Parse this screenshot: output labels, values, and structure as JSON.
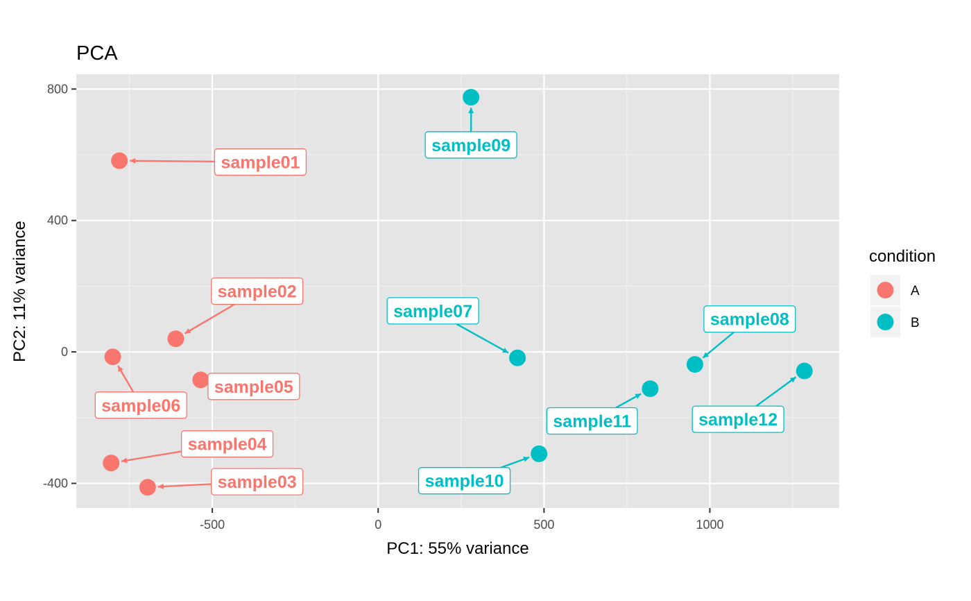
{
  "chart_data": {
    "type": "scatter",
    "title": "PCA",
    "xlabel": "PC1: 55% variance",
    "ylabel": "PC2: 11% variance",
    "xlim": [
      -910,
      1390
    ],
    "ylim": [
      -475,
      845
    ],
    "x_ticks": [
      -500,
      0,
      500,
      1000
    ],
    "y_ticks": [
      -400,
      0,
      400,
      800
    ],
    "x_tick_labels": [
      "-500",
      "0",
      "500",
      "1000"
    ],
    "y_tick_labels": [
      "-400",
      "0",
      "400",
      "800"
    ],
    "grid": true,
    "legend": {
      "title": "condition",
      "placement": "right",
      "entries": [
        {
          "label": "A",
          "color": "#F8766D"
        },
        {
          "label": "B",
          "color": "#00BFC4"
        }
      ]
    },
    "series": [
      {
        "name": "A",
        "color": "#F8766D",
        "points": [
          {
            "label": "sample01",
            "x": -780,
            "y": 582,
            "lx": -355,
            "ly": 578
          },
          {
            "label": "sample02",
            "x": -610,
            "y": 40,
            "lx": -365,
            "ly": 185
          },
          {
            "label": "sample03",
            "x": -695,
            "y": -412,
            "lx": -365,
            "ly": -395
          },
          {
            "label": "sample04",
            "x": -805,
            "y": -338,
            "lx": -455,
            "ly": -280
          },
          {
            "label": "sample05",
            "x": -535,
            "y": -85,
            "lx": -375,
            "ly": -105
          },
          {
            "label": "sample06",
            "x": -800,
            "y": -15,
            "lx": -715,
            "ly": -162
          }
        ]
      },
      {
        "name": "B",
        "color": "#00BFC4",
        "points": [
          {
            "label": "sample07",
            "x": 420,
            "y": -18,
            "lx": 165,
            "ly": 125
          },
          {
            "label": "sample08",
            "x": 955,
            "y": -38,
            "lx": 1120,
            "ly": 100
          },
          {
            "label": "sample09",
            "x": 280,
            "y": 775,
            "lx": 280,
            "ly": 630
          },
          {
            "label": "sample10",
            "x": 485,
            "y": -310,
            "lx": 260,
            "ly": -392
          },
          {
            "label": "sample11",
            "x": 820,
            "y": -112,
            "lx": 645,
            "ly": -210
          },
          {
            "label": "sample12",
            "x": 1285,
            "y": -58,
            "lx": 1085,
            "ly": -205
          }
        ]
      }
    ]
  }
}
